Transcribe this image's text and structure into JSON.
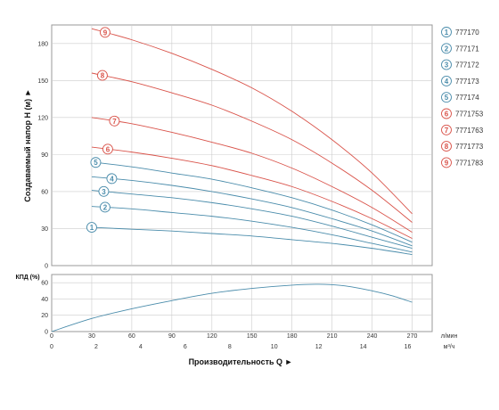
{
  "colors": {
    "blue": "#4a8cab",
    "red": "#d9534a",
    "grid": "#cccccc",
    "frame": "#999999"
  },
  "chart_data": [
    {
      "type": "line",
      "panel": "head",
      "ylabel": "Создаваемый напор H (м) ►",
      "xlim": [
        0,
        285
      ],
      "ylim": [
        0,
        195
      ],
      "yticks": [
        0,
        30,
        60,
        90,
        120,
        150,
        180
      ],
      "grid": true,
      "legend_position": "right",
      "series": [
        {
          "name": "777170",
          "label": "1",
          "color": "blue",
          "x": [
            30,
            60,
            90,
            120,
            150,
            180,
            210,
            240,
            270
          ],
          "y": [
            31,
            29.5,
            28,
            26,
            24,
            21,
            18,
            14,
            9
          ]
        },
        {
          "name": "777171",
          "label": "2",
          "color": "blue",
          "x": [
            30,
            60,
            90,
            120,
            150,
            180,
            210,
            240,
            270
          ],
          "y": [
            48,
            46,
            43,
            40,
            36,
            31,
            25,
            18,
            11
          ]
        },
        {
          "name": "777172",
          "label": "3",
          "color": "blue",
          "x": [
            30,
            60,
            90,
            120,
            150,
            180,
            210,
            240,
            270
          ],
          "y": [
            61,
            58,
            55,
            51,
            46,
            40,
            32,
            23,
            14
          ]
        },
        {
          "name": "777173",
          "label": "4",
          "color": "blue",
          "x": [
            30,
            60,
            90,
            120,
            150,
            180,
            210,
            240,
            270
          ],
          "y": [
            72,
            69,
            65,
            60,
            54,
            47,
            38,
            28,
            16
          ]
        },
        {
          "name": "777174",
          "label": "5",
          "color": "blue",
          "x": [
            30,
            60,
            90,
            120,
            150,
            180,
            210,
            240,
            270
          ],
          "y": [
            84,
            80,
            75,
            70,
            63,
            55,
            45,
            33,
            19
          ]
        },
        {
          "name": "7771753",
          "label": "6",
          "color": "red",
          "x": [
            30,
            60,
            90,
            120,
            150,
            180,
            210,
            240,
            270
          ],
          "y": [
            96,
            92,
            87,
            81,
            73,
            64,
            52,
            38,
            22
          ]
        },
        {
          "name": "7771763",
          "label": "7",
          "color": "red",
          "x": [
            30,
            60,
            90,
            120,
            150,
            180,
            210,
            240,
            270
          ],
          "y": [
            120,
            115,
            108,
            100,
            91,
            79,
            64,
            47,
            27
          ]
        },
        {
          "name": "7771773",
          "label": "8",
          "color": "red",
          "x": [
            30,
            60,
            90,
            120,
            150,
            180,
            210,
            240,
            270
          ],
          "y": [
            156,
            149,
            140,
            130,
            117,
            102,
            83,
            61,
            35
          ]
        },
        {
          "name": "7771783",
          "label": "9",
          "color": "red",
          "x": [
            30,
            60,
            90,
            120,
            150,
            180,
            210,
            240,
            270
          ],
          "y": [
            192,
            183,
            172,
            159,
            144,
            125,
            102,
            75,
            42
          ]
        }
      ]
    },
    {
      "type": "line",
      "panel": "efficiency",
      "ylabel": "КПД (%)",
      "xlabel": "Производительность Q ►",
      "xlim": [
        0,
        285
      ],
      "ylim": [
        0,
        70
      ],
      "yticks": [
        0,
        20,
        40,
        60
      ],
      "grid": true,
      "x_ticks_primary": [
        0,
        30,
        60,
        90,
        120,
        150,
        180,
        210,
        240,
        270
      ],
      "x_unit_primary": "л/мин",
      "x_ticks_secondary": [
        0,
        2,
        4,
        6,
        8,
        10,
        12,
        14,
        16
      ],
      "x_unit_secondary": "м³/ч",
      "series": [
        {
          "color": "blue",
          "x": [
            0,
            30,
            60,
            90,
            120,
            150,
            180,
            200,
            220,
            240,
            255,
            270
          ],
          "y": [
            0,
            16,
            28,
            38,
            47,
            53,
            57,
            58,
            56,
            50,
            44,
            36
          ]
        }
      ]
    }
  ]
}
